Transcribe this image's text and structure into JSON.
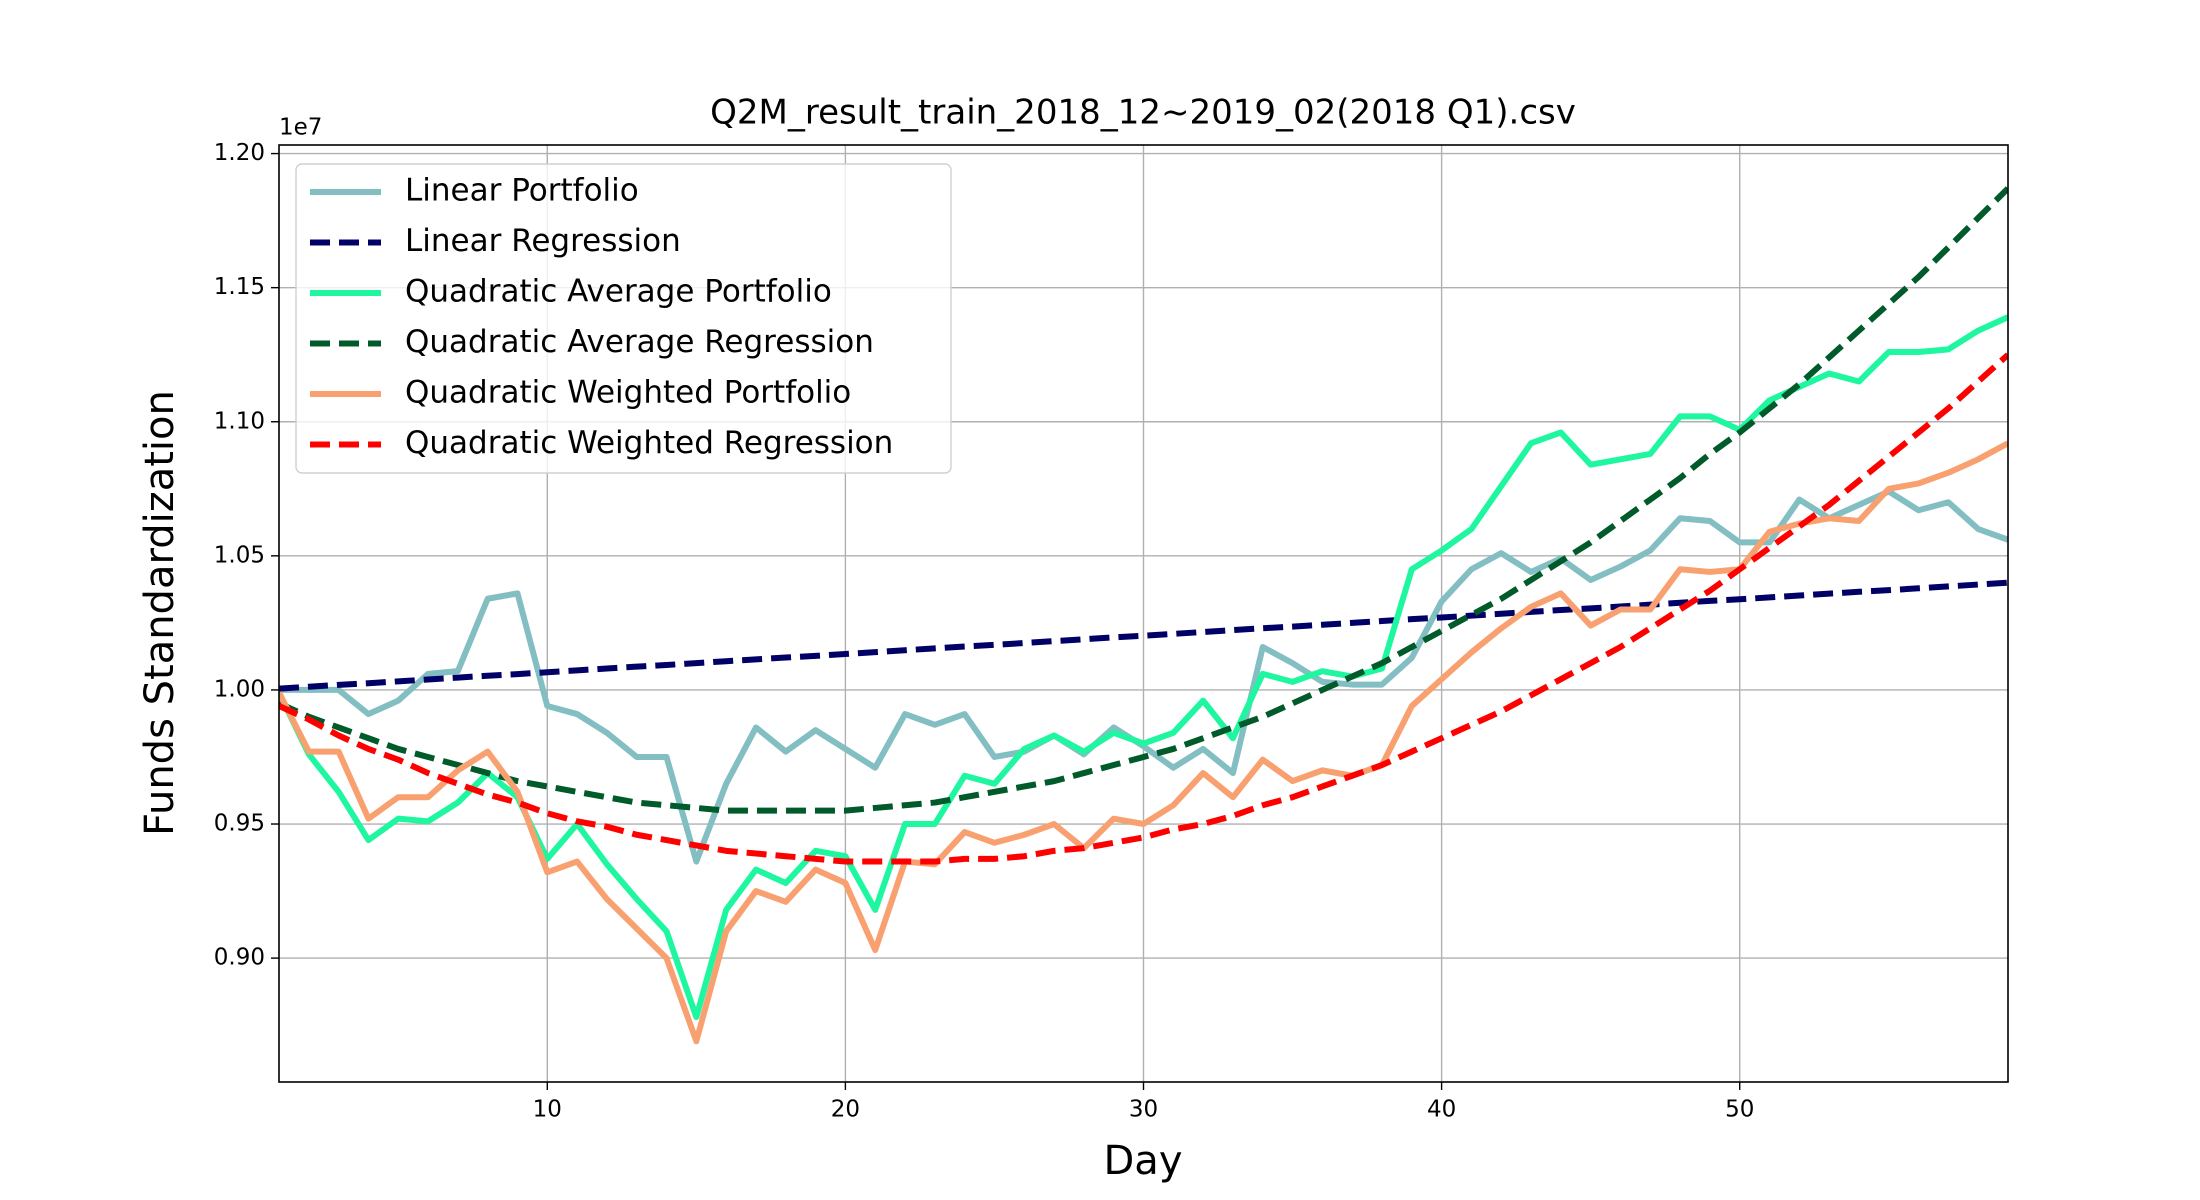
{
  "chart_data": {
    "type": "line",
    "title": "Q2M_result_train_2018_12~2019_02(2018 Q1).csv",
    "x_label": "Day",
    "y_label": "Funds Standardization",
    "y_offset_label": "1e7",
    "xlim": [
      1,
      59
    ],
    "ylim": [
      0.8538,
      1.2032
    ],
    "xticks": [
      10,
      20,
      30,
      40,
      50
    ],
    "yticks": [
      {
        "value": 0.9,
        "label": "0.90"
      },
      0.95,
      {
        "value": 1.0,
        "label": "1.00"
      },
      1.05,
      {
        "value": 1.1,
        "label": "1.10"
      },
      1.15,
      {
        "value": 1.2,
        "label": "1.20"
      }
    ],
    "grid": true,
    "legend_position": "upper left",
    "x": [
      1,
      2,
      3,
      4,
      5,
      6,
      7,
      8,
      9,
      10,
      11,
      12,
      13,
      14,
      15,
      16,
      17,
      18,
      19,
      20,
      21,
      22,
      23,
      24,
      25,
      26,
      27,
      28,
      29,
      30,
      31,
      32,
      33,
      34,
      35,
      36,
      37,
      38,
      39,
      40,
      41,
      42,
      43,
      44,
      45,
      46,
      47,
      48,
      49,
      50,
      51,
      52,
      53,
      54,
      55,
      56,
      57,
      58,
      59
    ],
    "series": [
      {
        "name": "Linear Portfolio",
        "color": "#82bec2",
        "linestyle": "solid",
        "values": [
          1.0,
          1.0,
          1.0,
          0.991,
          0.996,
          1.006,
          1.007,
          1.034,
          1.036,
          0.994,
          0.991,
          0.984,
          0.975,
          0.975,
          0.936,
          0.965,
          0.986,
          0.977,
          0.985,
          0.978,
          0.971,
          0.991,
          0.987,
          0.991,
          0.975,
          0.977,
          0.983,
          0.976,
          0.986,
          0.979,
          0.971,
          0.978,
          0.969,
          1.016,
          1.01,
          1.003,
          1.002,
          1.002,
          1.012,
          1.033,
          1.045,
          1.051,
          1.044,
          1.049,
          1.041,
          1.046,
          1.052,
          1.064,
          1.063,
          1.055,
          1.055,
          1.071,
          1.064,
          1.069,
          1.074,
          1.067,
          1.07,
          1.06,
          1.056
        ]
      },
      {
        "name": "Linear Regression",
        "color": "#000066",
        "linestyle": "dashed",
        "values": [
          1.0005,
          1.0012,
          1.0019,
          1.0025,
          1.0032,
          1.0039,
          1.0046,
          1.0053,
          1.0059,
          1.0066,
          1.0073,
          1.008,
          1.0087,
          1.0093,
          1.01,
          1.0107,
          1.0114,
          1.0121,
          1.0127,
          1.0134,
          1.0141,
          1.0148,
          1.0155,
          1.0162,
          1.0168,
          1.0175,
          1.0182,
          1.0189,
          1.0196,
          1.0202,
          1.0209,
          1.0216,
          1.0223,
          1.023,
          1.0236,
          1.0243,
          1.025,
          1.0257,
          1.0264,
          1.027,
          1.0277,
          1.0284,
          1.0291,
          1.0298,
          1.0304,
          1.0311,
          1.0318,
          1.0325,
          1.0332,
          1.0338,
          1.0345,
          1.0352,
          1.0359,
          1.0366,
          1.0372,
          1.0379,
          1.0386,
          1.0393,
          1.04
        ]
      },
      {
        "name": "Quadratic Average Portfolio",
        "color": "#1ff7a0",
        "linestyle": "solid",
        "values": [
          0.999,
          0.976,
          0.962,
          0.944,
          0.952,
          0.951,
          0.958,
          0.969,
          0.96,
          0.937,
          0.95,
          0.935,
          0.922,
          0.91,
          0.878,
          0.918,
          0.933,
          0.928,
          0.94,
          0.938,
          0.918,
          0.95,
          0.95,
          0.968,
          0.965,
          0.978,
          0.983,
          0.977,
          0.984,
          0.98,
          0.984,
          0.996,
          0.982,
          1.006,
          1.003,
          1.007,
          1.005,
          1.008,
          1.045,
          1.052,
          1.06,
          1.076,
          1.092,
          1.096,
          1.084,
          1.086,
          1.088,
          1.102,
          1.102,
          1.097,
          1.108,
          1.113,
          1.118,
          1.115,
          1.126,
          1.126,
          1.127,
          1.134,
          1.139
        ]
      },
      {
        "name": "Quadratic Average Regression",
        "color": "#005a2a",
        "linestyle": "dashed",
        "values": [
          0.995,
          0.99,
          0.986,
          0.982,
          0.978,
          0.975,
          0.972,
          0.969,
          0.966,
          0.964,
          0.962,
          0.96,
          0.958,
          0.957,
          0.956,
          0.955,
          0.955,
          0.955,
          0.955,
          0.955,
          0.956,
          0.957,
          0.958,
          0.96,
          0.962,
          0.964,
          0.966,
          0.969,
          0.972,
          0.975,
          0.978,
          0.982,
          0.986,
          0.99,
          0.995,
          1.0,
          1.005,
          1.01,
          1.016,
          1.022,
          1.028,
          1.034,
          1.041,
          1.048,
          1.055,
          1.063,
          1.071,
          1.079,
          1.088,
          1.096,
          1.105,
          1.114,
          1.124,
          1.134,
          1.144,
          1.154,
          1.165,
          1.176,
          1.187
        ]
      },
      {
        "name": "Quadratic Weighted Portfolio",
        "color": "#f9a070",
        "linestyle": "solid",
        "values": [
          0.999,
          0.977,
          0.977,
          0.952,
          0.96,
          0.96,
          0.97,
          0.977,
          0.962,
          0.932,
          0.936,
          0.922,
          0.911,
          0.9,
          0.869,
          0.91,
          0.925,
          0.921,
          0.933,
          0.928,
          0.903,
          0.936,
          0.935,
          0.947,
          0.943,
          0.946,
          0.95,
          0.941,
          0.952,
          0.95,
          0.957,
          0.969,
          0.96,
          0.974,
          0.966,
          0.97,
          0.968,
          0.972,
          0.994,
          1.004,
          1.014,
          1.023,
          1.031,
          1.036,
          1.024,
          1.03,
          1.03,
          1.045,
          1.044,
          1.045,
          1.059,
          1.062,
          1.064,
          1.063,
          1.075,
          1.077,
          1.081,
          1.086,
          1.092
        ]
      },
      {
        "name": "Quadratic Weighted Regression",
        "color": "#ff0000",
        "linestyle": "dashed",
        "values": [
          0.994,
          0.989,
          0.983,
          0.978,
          0.974,
          0.969,
          0.965,
          0.961,
          0.958,
          0.954,
          0.951,
          0.949,
          0.946,
          0.944,
          0.942,
          0.94,
          0.939,
          0.938,
          0.937,
          0.936,
          0.936,
          0.936,
          0.936,
          0.937,
          0.937,
          0.938,
          0.94,
          0.941,
          0.943,
          0.945,
          0.948,
          0.95,
          0.953,
          0.957,
          0.96,
          0.964,
          0.968,
          0.972,
          0.977,
          0.982,
          0.987,
          0.992,
          0.998,
          1.004,
          1.01,
          1.016,
          1.023,
          1.03,
          1.037,
          1.045,
          1.053,
          1.061,
          1.069,
          1.078,
          1.087,
          1.096,
          1.105,
          1.115,
          1.125
        ]
      }
    ]
  }
}
